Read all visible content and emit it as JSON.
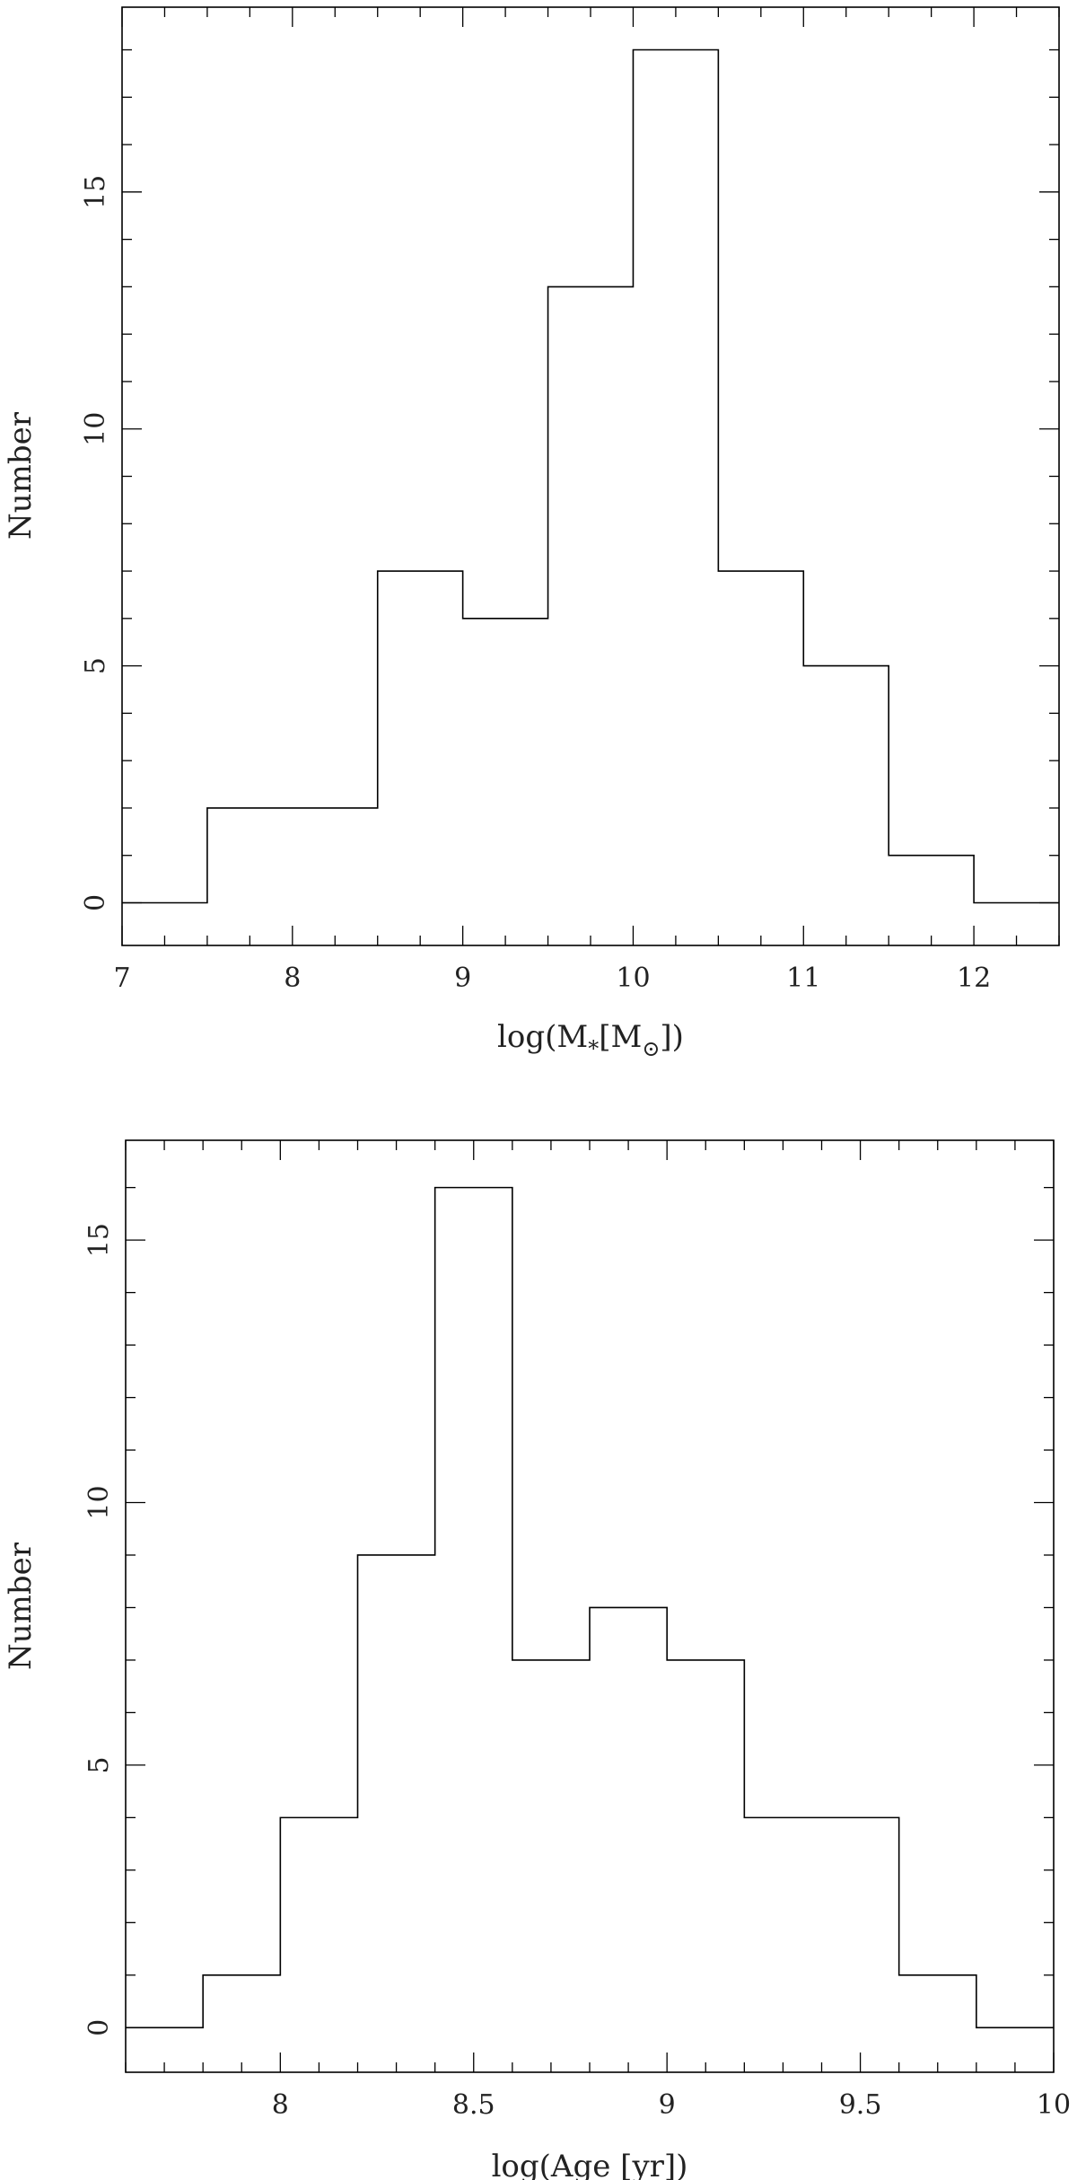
{
  "chart_data": [
    {
      "type": "bar",
      "histogram": true,
      "title": "",
      "xlabel": "log(M",
      "xlabel_sub": "*",
      "xlabel_mid": "[M",
      "xlabel_sun": "⊙",
      "xlabel_end": "])",
      "ylabel": "Number",
      "xlim": [
        7,
        12.5
      ],
      "ylim": [
        -0.9,
        18.9
      ],
      "bin_width": 0.5,
      "bin_edges": [
        7,
        7.5,
        8,
        8.5,
        9,
        9.5,
        10,
        10.5,
        11,
        11.5,
        12,
        12.5
      ],
      "values": [
        0,
        2,
        2,
        7,
        6,
        13,
        18,
        7,
        5,
        1,
        0
      ],
      "x_major_ticks": [
        7,
        8,
        9,
        10,
        11,
        12
      ],
      "x_tick_labels": [
        "7",
        "8",
        "9",
        "10",
        "11",
        "12"
      ],
      "x_minor_step": 0.25,
      "y_major_ticks": [
        0,
        5,
        10,
        15
      ],
      "y_tick_labels": [
        "0",
        "5",
        "10",
        "15"
      ],
      "y_minor_step": 1,
      "grid": false
    },
    {
      "type": "bar",
      "histogram": true,
      "title": "",
      "xlabel": "log(Age [yr])",
      "ylabel": "Number",
      "xlim": [
        7.6,
        10
      ],
      "ylim": [
        -0.85,
        16.9
      ],
      "bin_width": 0.2,
      "bin_edges": [
        7.6,
        7.8,
        8.0,
        8.2,
        8.4,
        8.6,
        8.8,
        9.0,
        9.2,
        9.4,
        9.6,
        9.8,
        10.0
      ],
      "values": [
        0,
        1,
        4,
        9,
        16,
        7,
        8,
        7,
        4,
        4,
        1,
        0
      ],
      "x_major_ticks": [
        8,
        8.5,
        9,
        9.5,
        10
      ],
      "x_tick_labels": [
        "8",
        "8.5",
        "9",
        "9.5",
        "10"
      ],
      "x_minor_step": 0.1,
      "y_major_ticks": [
        0,
        5,
        10,
        15
      ],
      "y_tick_labels": [
        "0",
        "5",
        "10",
        "15"
      ],
      "y_minor_step": 1,
      "grid": false
    }
  ]
}
